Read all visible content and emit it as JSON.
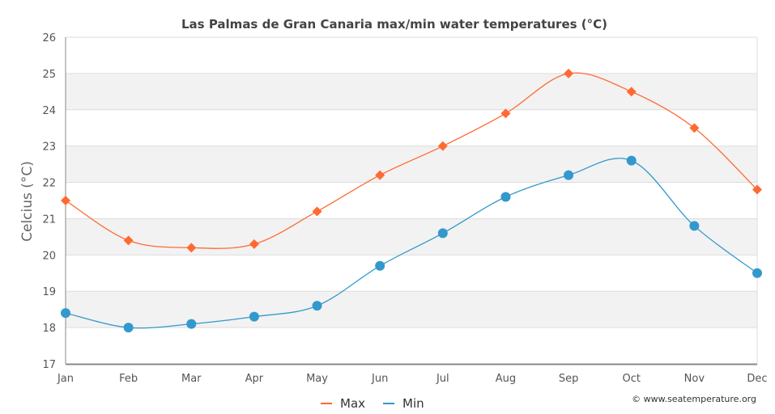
{
  "chart_data": {
    "type": "line",
    "title": "Las Palmas de Gran Canaria max/min water temperatures (°C)",
    "xlabel": "",
    "ylabel": "Celcius (°C)",
    "categories": [
      "Jan",
      "Feb",
      "Mar",
      "Apr",
      "May",
      "Jun",
      "Jul",
      "Aug",
      "Sep",
      "Oct",
      "Nov",
      "Dec"
    ],
    "series": [
      {
        "name": "Max",
        "color": "#ff6a33",
        "marker": "diamond",
        "values": [
          21.5,
          20.4,
          20.2,
          20.3,
          21.2,
          22.2,
          23.0,
          23.9,
          25.0,
          24.5,
          23.5,
          21.8
        ]
      },
      {
        "name": "Min",
        "color": "#3399cc",
        "marker": "circle",
        "values": [
          18.4,
          18.0,
          18.1,
          18.3,
          18.6,
          19.7,
          20.6,
          21.6,
          22.2,
          22.6,
          20.8,
          19.5
        ]
      }
    ],
    "ylim": [
      17,
      26
    ],
    "yticks": [
      17,
      18,
      19,
      20,
      21,
      22,
      23,
      24,
      25,
      26
    ],
    "grid": true,
    "legend": "bottom-center"
  },
  "credit": "© www.seatemperature.org"
}
